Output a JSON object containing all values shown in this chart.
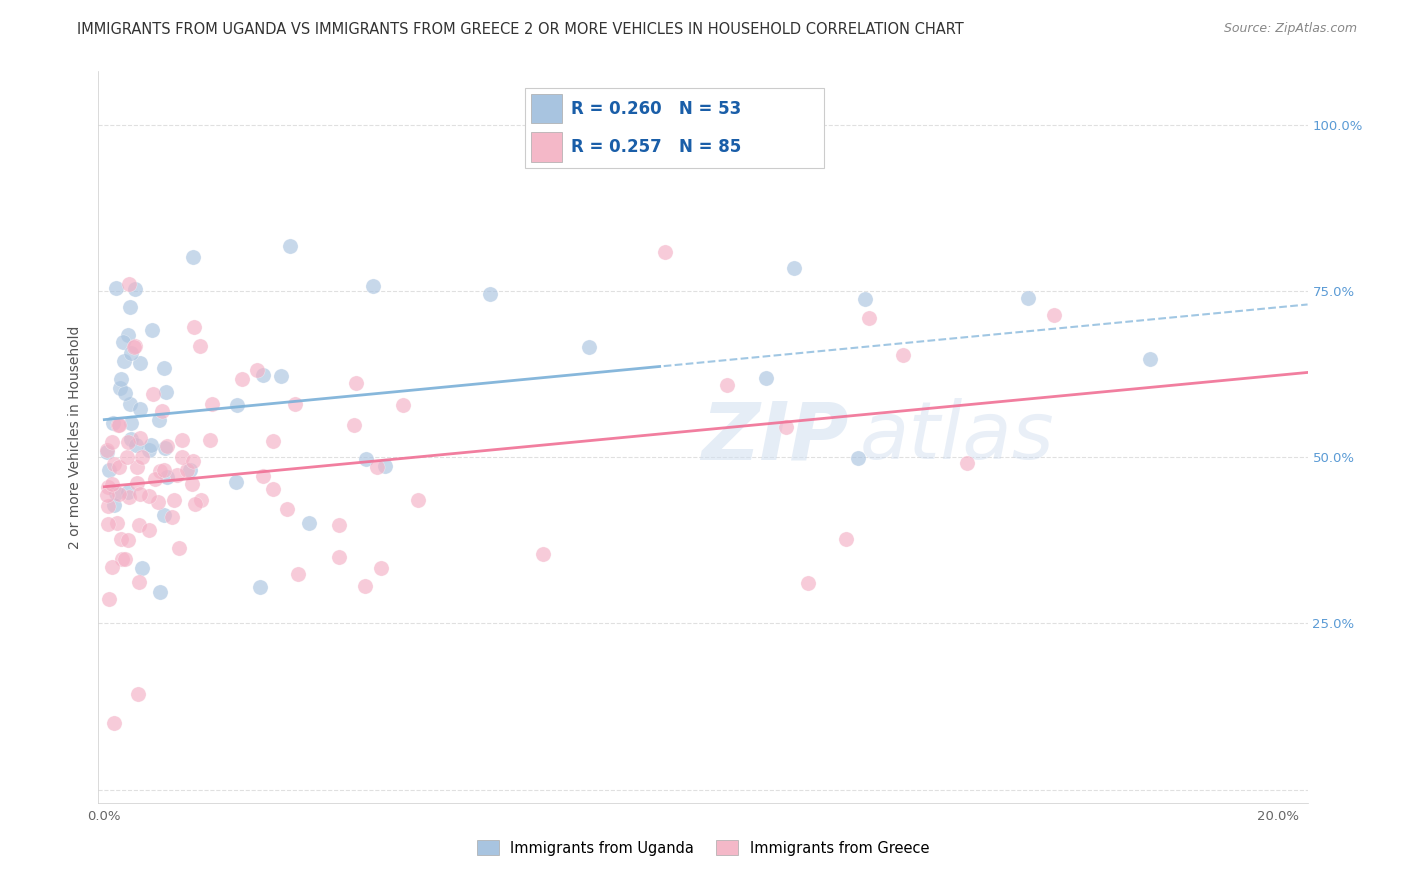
{
  "title": "IMMIGRANTS FROM UGANDA VS IMMIGRANTS FROM GREECE 2 OR MORE VEHICLES IN HOUSEHOLD CORRELATION CHART",
  "source": "Source: ZipAtlas.com",
  "ylabel": "2 or more Vehicles in Household",
  "uganda_color": "#a8c4e0",
  "greece_color": "#f4b8c8",
  "uganda_scatter_color": "#aac4e0",
  "greece_scatter_color": "#f4b0c5",
  "uganda_line_color": "#7ab0d8",
  "greece_line_color": "#f07095",
  "R_uganda": 0.26,
  "N_uganda": 53,
  "R_greece": 0.257,
  "N_greece": 85,
  "watermark_zip": "ZIP",
  "watermark_atlas": "atlas",
  "bg_color": "#ffffff",
  "grid_color": "#e0e0e0",
  "title_fontsize": 10.5,
  "axis_label_fontsize": 10,
  "tick_fontsize": 9.5,
  "right_tick_color": "#5b9bd5",
  "legend_text_color": "#1a5ea8"
}
